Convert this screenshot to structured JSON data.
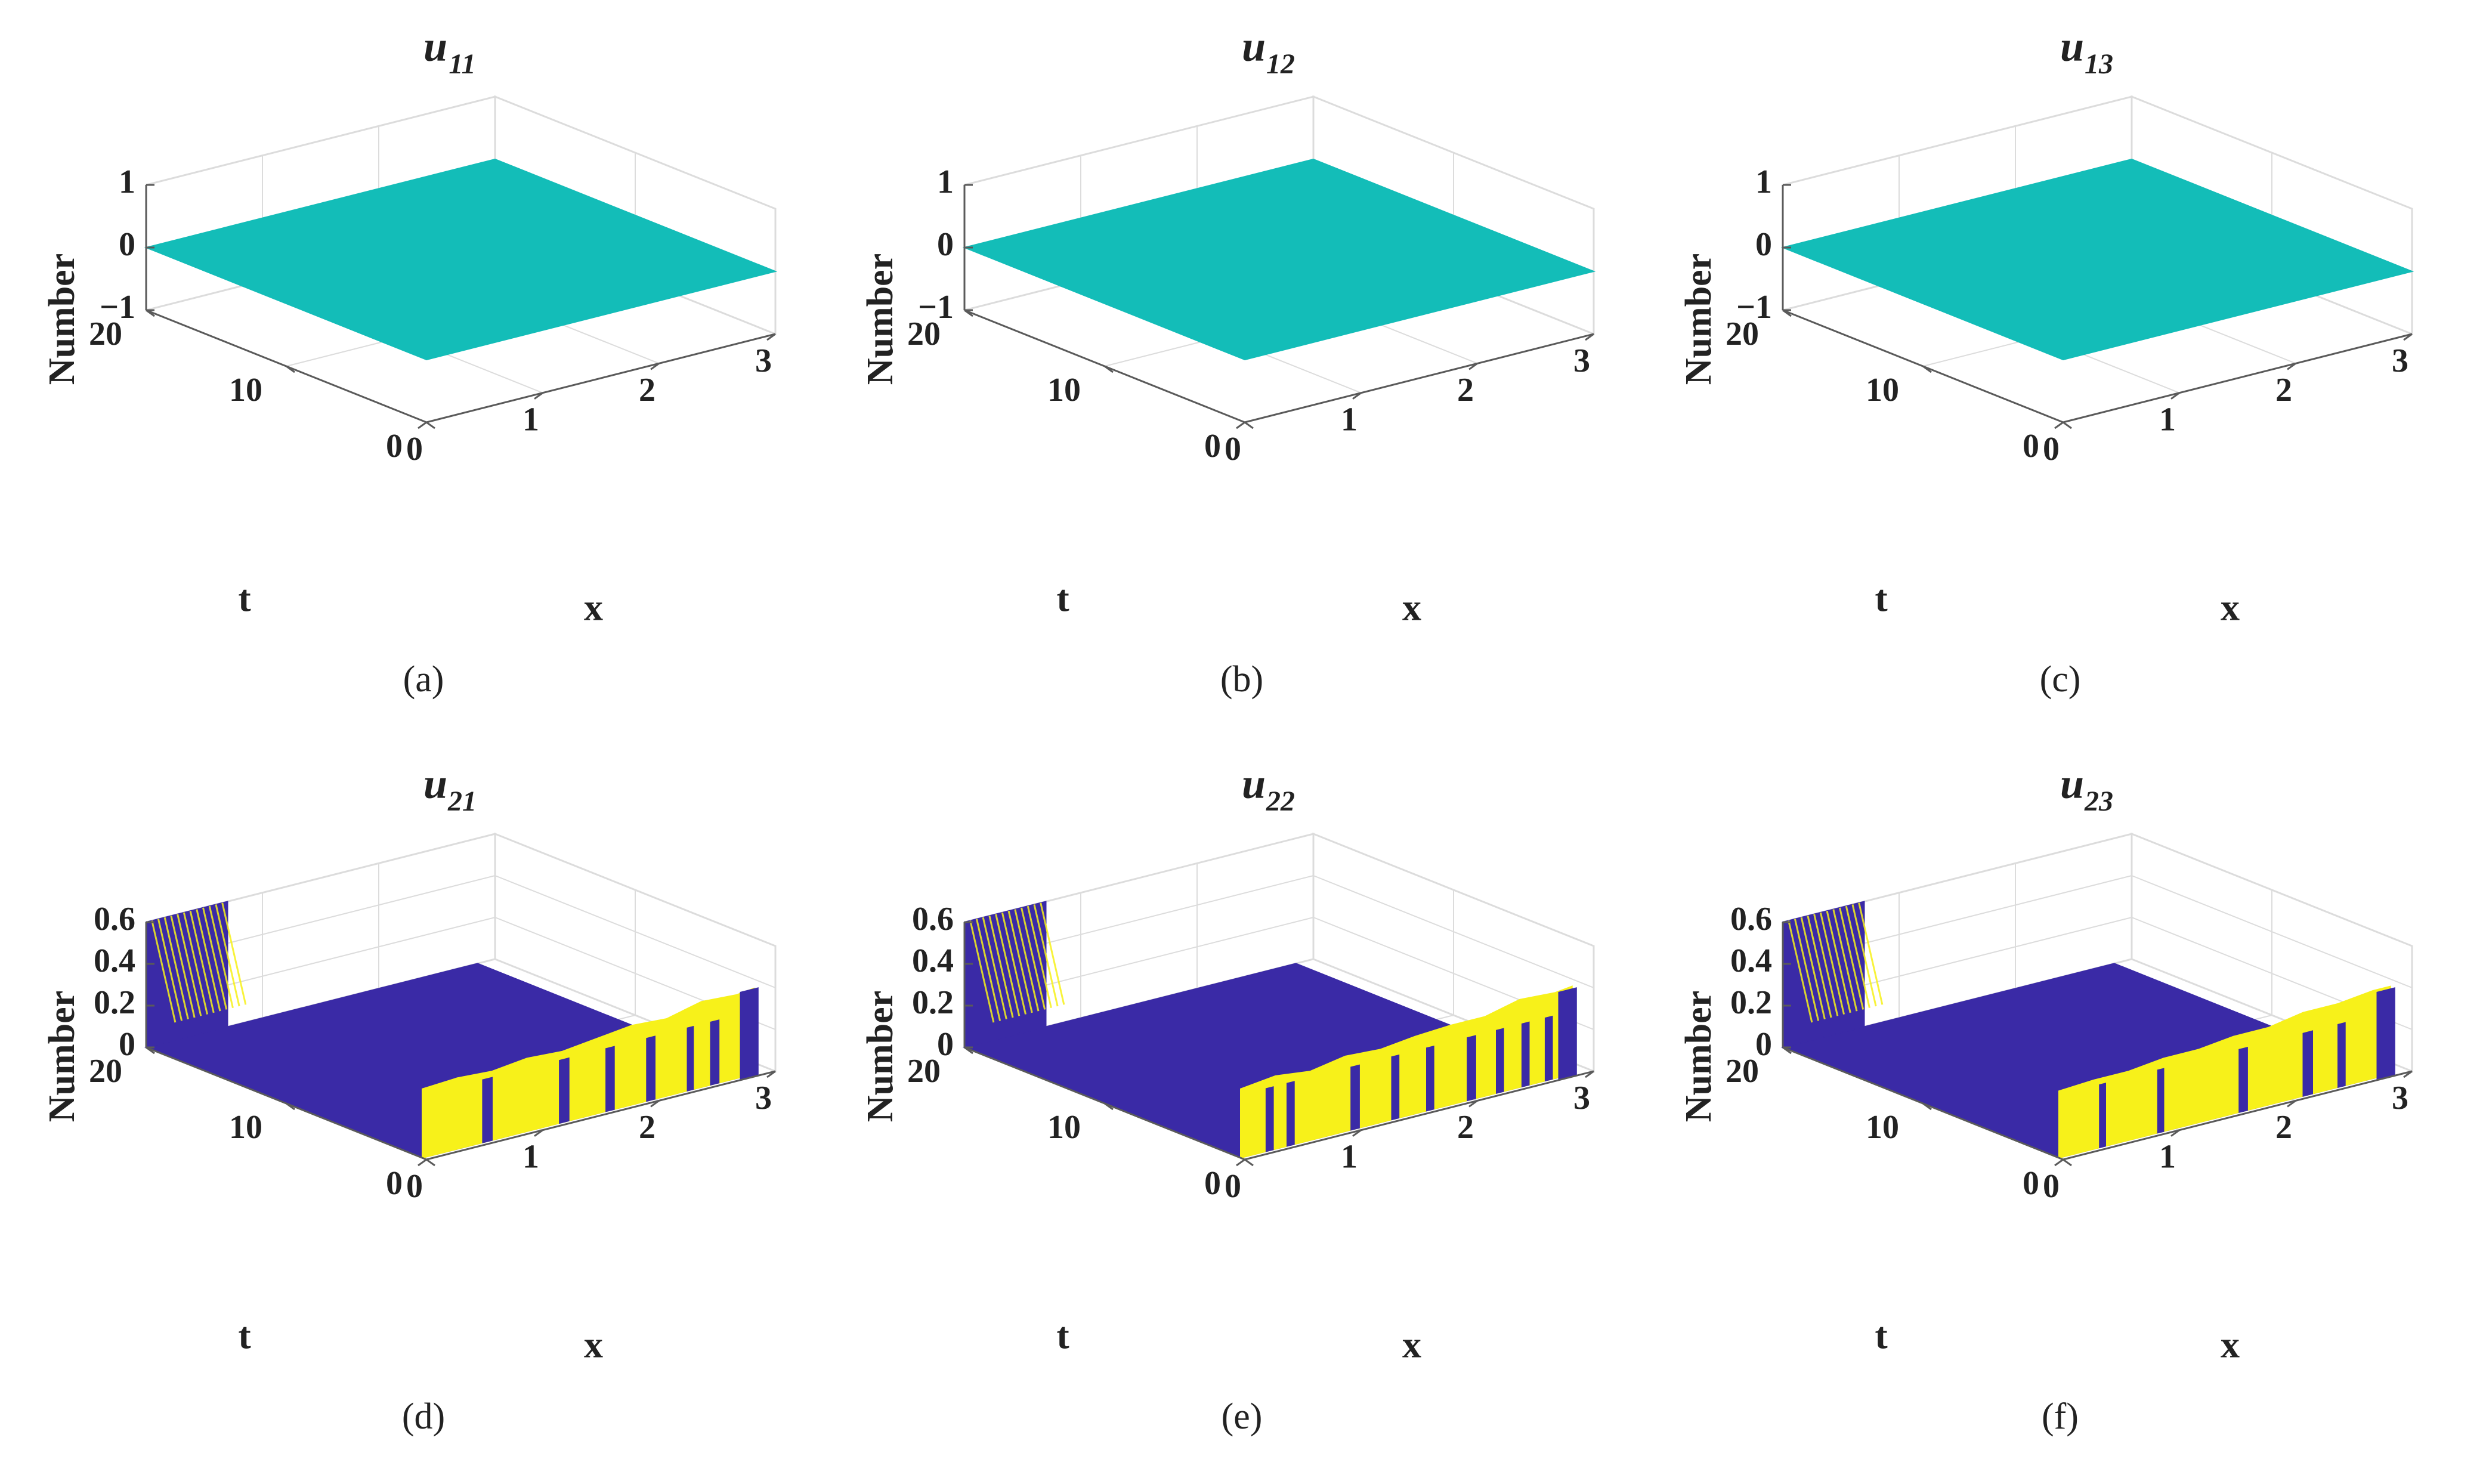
{
  "colors": {
    "flat_surface": "#13bdb8",
    "low": "#3a2aa6",
    "high": "#f7f11a",
    "grid": "#dcdcdc",
    "axis": "#5a5a5a",
    "text": "#222222"
  },
  "chart_data": [
    {
      "panel": "(a)",
      "caption_label": "a",
      "type": "surface",
      "title": "u",
      "title_sub": "11",
      "xlabel": "x",
      "ylabel": "t",
      "zlabel": "Number",
      "xlim": [
        0,
        3
      ],
      "ylim": [
        0,
        20
      ],
      "zlim": [
        -1,
        1
      ],
      "x_ticks": [
        0,
        1,
        2,
        3
      ],
      "x_tick_labels": [
        "0",
        "1",
        "2",
        "3"
      ],
      "y_ticks": [
        0,
        10,
        20
      ],
      "y_tick_labels": [
        "0",
        "10",
        "20"
      ],
      "z_ticks": [
        -1,
        0,
        1
      ],
      "z_tick_labels": [
        "−1",
        "0",
        "1"
      ],
      "surface": "flat",
      "value": 0
    },
    {
      "panel": "(b)",
      "caption_label": "b",
      "type": "surface",
      "title": "u",
      "title_sub": "12",
      "xlabel": "x",
      "ylabel": "t",
      "zlabel": "Number",
      "xlim": [
        0,
        3
      ],
      "ylim": [
        0,
        20
      ],
      "zlim": [
        -1,
        1
      ],
      "x_ticks": [
        0,
        1,
        2,
        3
      ],
      "x_tick_labels": [
        "0",
        "1",
        "2",
        "3"
      ],
      "y_ticks": [
        0,
        10,
        20
      ],
      "y_tick_labels": [
        "0",
        "10",
        "20"
      ],
      "z_ticks": [
        -1,
        0,
        1
      ],
      "z_tick_labels": [
        "−1",
        "0",
        "1"
      ],
      "surface": "flat",
      "value": 0
    },
    {
      "panel": "(c)",
      "caption_label": "c",
      "type": "surface",
      "title": "u",
      "title_sub": "13",
      "xlabel": "x",
      "ylabel": "t",
      "zlabel": "Number",
      "xlim": [
        0,
        3
      ],
      "ylim": [
        0,
        20
      ],
      "zlim": [
        -1,
        1
      ],
      "x_ticks": [
        0,
        1,
        2,
        3
      ],
      "x_tick_labels": [
        "0",
        "1",
        "2",
        "3"
      ],
      "y_ticks": [
        0,
        10,
        20
      ],
      "y_tick_labels": [
        "0",
        "10",
        "20"
      ],
      "z_ticks": [
        -1,
        0,
        1
      ],
      "z_tick_labels": [
        "−1",
        "0",
        "1"
      ],
      "surface": "flat",
      "value": 0
    },
    {
      "panel": "(d)",
      "caption_label": "d",
      "type": "surface",
      "title": "u",
      "title_sub": "21",
      "xlabel": "x",
      "ylabel": "t",
      "zlabel": "Number",
      "xlim": [
        0,
        3
      ],
      "ylim": [
        0,
        20
      ],
      "zlim": [
        0,
        0.6
      ],
      "x_ticks": [
        0,
        1,
        2,
        3
      ],
      "x_tick_labels": [
        "0",
        "1",
        "2",
        "3"
      ],
      "y_ticks": [
        0,
        10,
        20
      ],
      "y_tick_labels": [
        "0",
        "10",
        "20"
      ],
      "z_ticks": [
        0,
        0.2,
        0.4,
        0.6
      ],
      "z_tick_labels": [
        "0",
        "0.2",
        "0.4",
        "0.6"
      ],
      "surface": "switching",
      "ridge": {
        "x_start": 0.0,
        "x_end": 2.85,
        "t_switch": 0.3,
        "amplitude": 0.6
      },
      "front_profile": {
        "x": [
          0,
          0.3,
          0.6,
          0.9,
          1.2,
          1.5,
          1.8,
          2.1,
          2.4,
          2.7,
          2.85
        ],
        "z": [
          0.33,
          0.34,
          0.33,
          0.35,
          0.34,
          0.36,
          0.38,
          0.37,
          0.41,
          0.4,
          0.41
        ]
      },
      "low_intervals": [
        [
          0.52,
          0.6
        ],
        [
          1.18,
          1.26
        ],
        [
          1.58,
          1.65
        ],
        [
          1.93,
          2.0
        ],
        [
          2.28,
          2.33
        ],
        [
          2.48,
          2.55
        ]
      ]
    },
    {
      "panel": "(e)",
      "caption_label": "e",
      "type": "surface",
      "title": "u",
      "title_sub": "22",
      "xlabel": "x",
      "ylabel": "t",
      "zlabel": "Number",
      "xlim": [
        0,
        3
      ],
      "ylim": [
        0,
        20
      ],
      "zlim": [
        0,
        0.6
      ],
      "x_ticks": [
        0,
        1,
        2,
        3
      ],
      "x_tick_labels": [
        "0",
        "1",
        "2",
        "3"
      ],
      "y_ticks": [
        0,
        10,
        20
      ],
      "y_tick_labels": [
        "0",
        "10",
        "20"
      ],
      "z_ticks": [
        0,
        0.2,
        0.4,
        0.6
      ],
      "z_tick_labels": [
        "0",
        "0.2",
        "0.4",
        "0.6"
      ],
      "surface": "switching",
      "ridge": {
        "x_start": 0.0,
        "x_end": 2.85,
        "t_switch": 0.3,
        "amplitude": 0.6
      },
      "front_profile": {
        "x": [
          0,
          0.3,
          0.6,
          0.9,
          1.2,
          1.5,
          1.8,
          2.1,
          2.4,
          2.7,
          2.85
        ],
        "z": [
          0.33,
          0.35,
          0.33,
          0.36,
          0.35,
          0.37,
          0.38,
          0.38,
          0.42,
          0.41,
          0.42
        ]
      },
      "low_intervals": [
        [
          0.22,
          0.28
        ],
        [
          0.4,
          0.46
        ],
        [
          0.95,
          1.02
        ],
        [
          1.3,
          1.36
        ],
        [
          1.6,
          1.66
        ],
        [
          1.95,
          2.02
        ],
        [
          2.2,
          2.26
        ],
        [
          2.42,
          2.48
        ],
        [
          2.62,
          2.68
        ]
      ]
    },
    {
      "panel": "(f)",
      "caption_label": "f",
      "type": "surface",
      "title": "u",
      "title_sub": "23",
      "xlabel": "x",
      "ylabel": "t",
      "zlabel": "Number",
      "xlim": [
        0,
        3
      ],
      "ylim": [
        0,
        20
      ],
      "zlim": [
        0,
        0.6
      ],
      "x_ticks": [
        0,
        1,
        2,
        3
      ],
      "x_tick_labels": [
        "0",
        "1",
        "2",
        "3"
      ],
      "y_ticks": [
        0,
        10,
        20
      ],
      "y_tick_labels": [
        "0",
        "10",
        "20"
      ],
      "z_ticks": [
        0,
        0.2,
        0.4,
        0.6
      ],
      "z_tick_labels": [
        "0",
        "0.2",
        "0.4",
        "0.6"
      ],
      "surface": "switching",
      "ridge": {
        "x_start": 0.0,
        "x_end": 2.85,
        "t_switch": 0.3,
        "amplitude": 0.6
      },
      "front_profile": {
        "x": [
          0,
          0.3,
          0.6,
          0.9,
          1.2,
          1.5,
          1.8,
          2.1,
          2.4,
          2.7,
          2.85
        ],
        "z": [
          0.32,
          0.33,
          0.33,
          0.35,
          0.35,
          0.37,
          0.37,
          0.4,
          0.4,
          0.42,
          0.42
        ]
      },
      "low_intervals": [
        [
          0.35,
          0.4
        ],
        [
          0.85,
          0.9
        ],
        [
          1.55,
          1.62
        ],
        [
          2.1,
          2.18
        ],
        [
          2.4,
          2.46
        ]
      ]
    }
  ]
}
